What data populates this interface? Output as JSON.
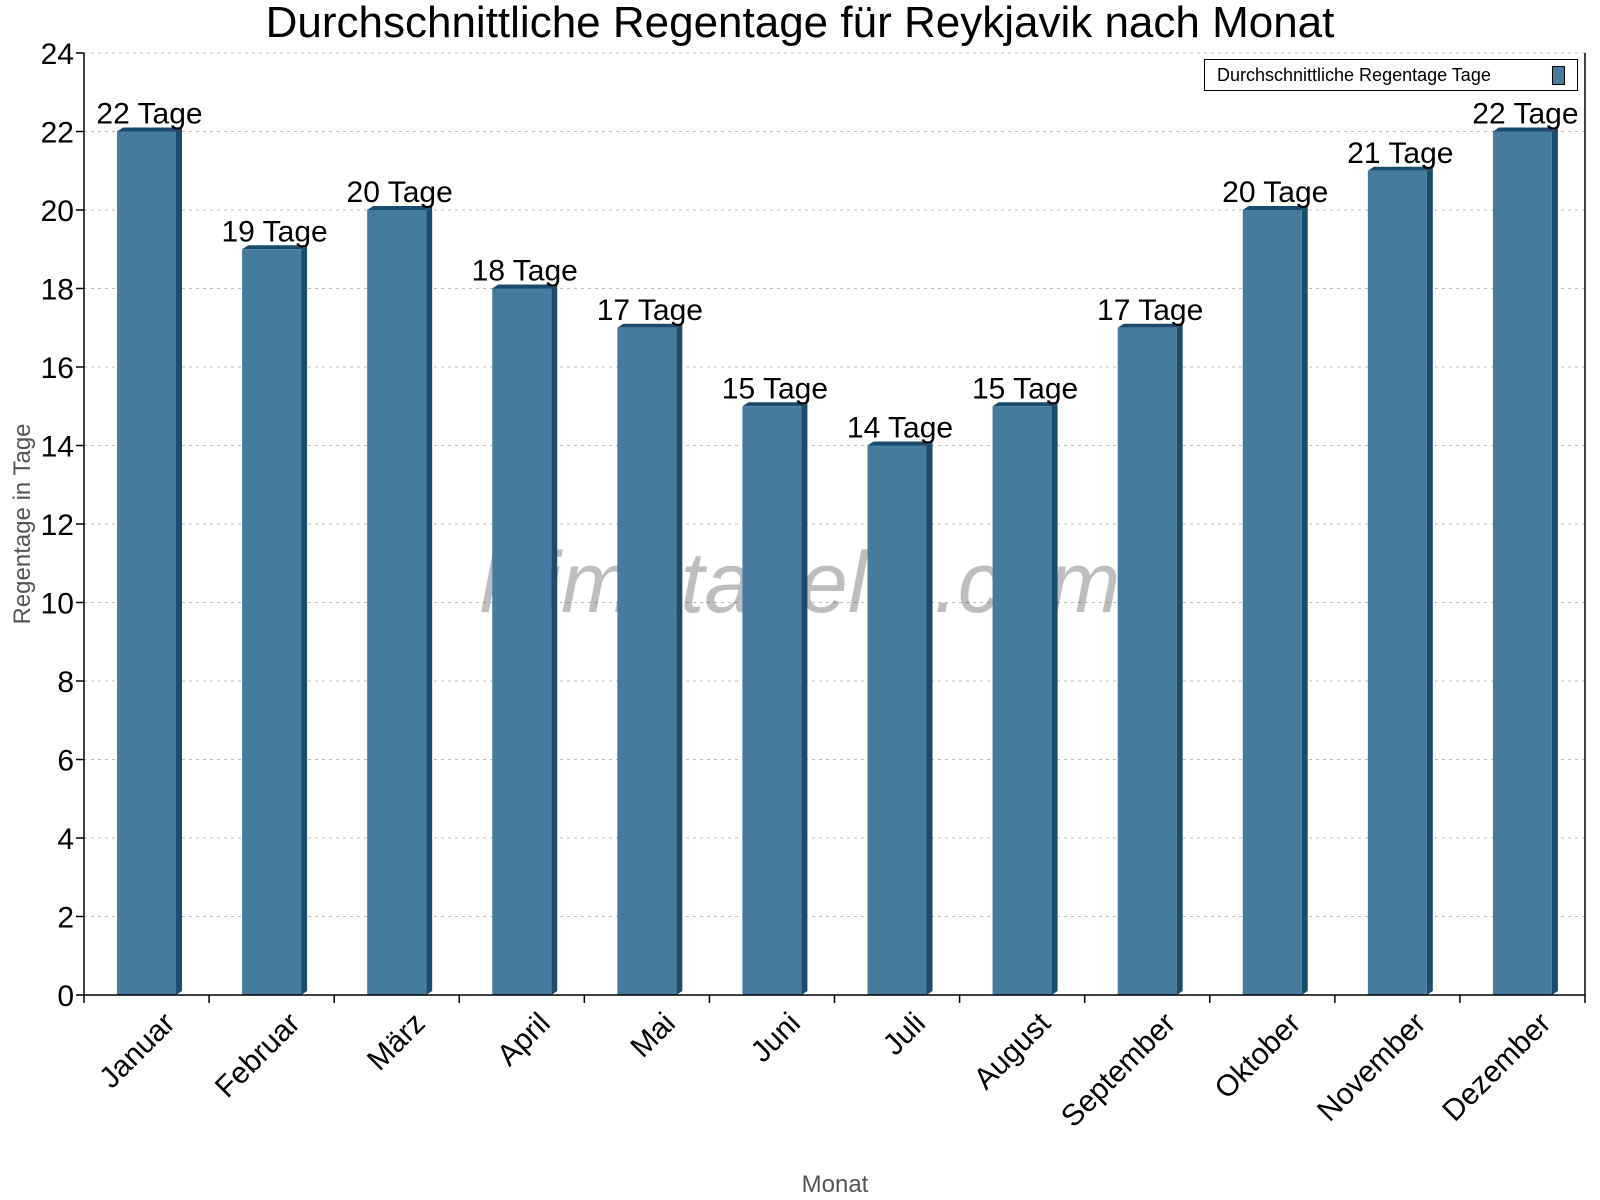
{
  "chart_data": {
    "type": "bar",
    "title": "Durchschnittliche Regentage für Reykjavik nach Monat",
    "xlabel": "Monat",
    "ylabel": "Regentage in Tage",
    "ylim": [
      0,
      24
    ],
    "yticks": [
      0,
      2,
      4,
      6,
      8,
      10,
      12,
      14,
      16,
      18,
      20,
      22,
      24
    ],
    "grid": true,
    "legend_position": "top-right",
    "categories": [
      "Januar",
      "Februar",
      "März",
      "April",
      "Mai",
      "Juni",
      "Juli",
      "August",
      "September",
      "Oktober",
      "November",
      "Dezember"
    ],
    "series": [
      {
        "name": "Durchschnittliche Regentage Tage",
        "values": [
          22,
          19,
          20,
          18,
          17,
          15,
          14,
          15,
          17,
          20,
          21,
          22
        ],
        "data_labels": [
          "22 Tage",
          "19 Tage",
          "20 Tage",
          "18 Tage",
          "17 Tage",
          "15 Tage",
          "14 Tage",
          "15 Tage",
          "17 Tage",
          "20 Tage",
          "21 Tage",
          "22 Tage"
        ],
        "color": "#467b9d",
        "side_color": "#1b4c6e"
      }
    ],
    "watermark": "klimatabelle.com"
  }
}
